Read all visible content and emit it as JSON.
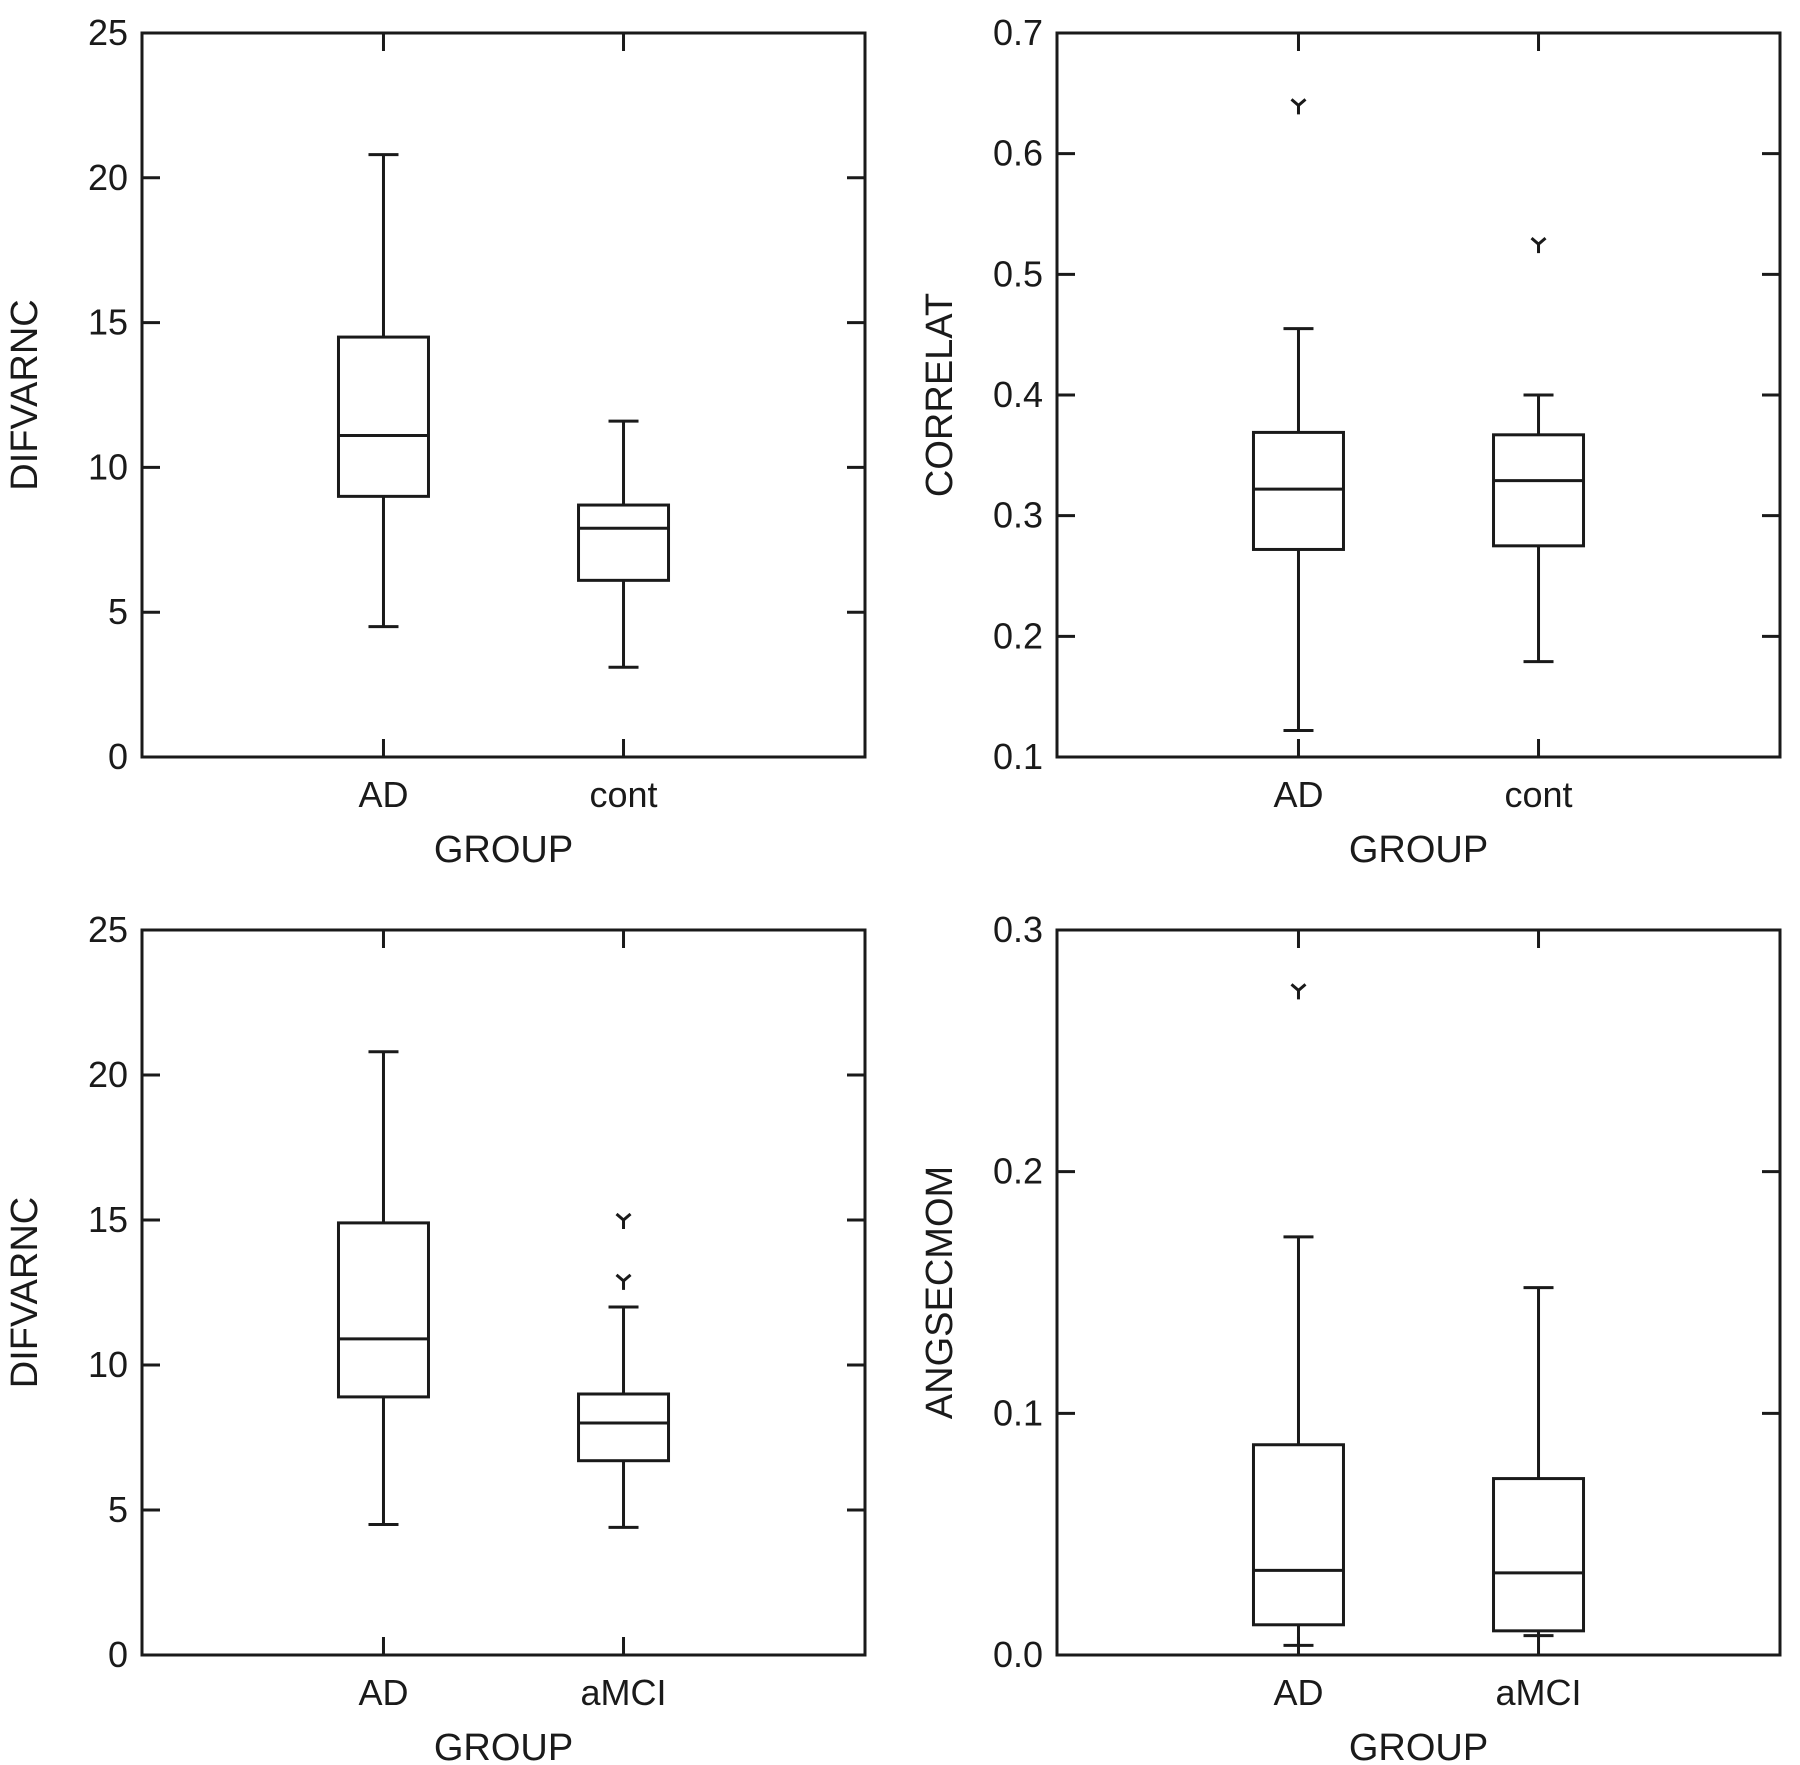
{
  "chart_data": [
    {
      "type": "box",
      "xlabel": "GROUP",
      "ylabel": "DIFVARNC",
      "ylim": [
        0,
        25
      ],
      "yticks": [
        "0",
        "5",
        "10",
        "15",
        "20",
        "25"
      ],
      "categories": [
        "AD",
        "cont"
      ],
      "boxes": [
        {
          "category": "AD",
          "min": 4.5,
          "q1": 9.0,
          "median": 11.1,
          "q3": 14.5,
          "max": 20.8,
          "outliers": []
        },
        {
          "category": "cont",
          "min": 3.1,
          "q1": 6.1,
          "median": 7.9,
          "q3": 8.7,
          "max": 11.6,
          "outliers": []
        }
      ]
    },
    {
      "type": "box",
      "xlabel": "GROUP",
      "ylabel": "CORRELAT",
      "ylim": [
        0.1,
        0.7
      ],
      "yticks": [
        "0.1",
        "0.2",
        "0.3",
        "0.4",
        "0.5",
        "0.6",
        "0.7"
      ],
      "categories": [
        "AD",
        "cont"
      ],
      "boxes": [
        {
          "category": "AD",
          "min": 0.122,
          "q1": 0.272,
          "median": 0.322,
          "q3": 0.369,
          "max": 0.455,
          "outliers": [
            0.64
          ]
        },
        {
          "category": "cont",
          "min": 0.179,
          "q1": 0.275,
          "median": 0.329,
          "q3": 0.367,
          "max": 0.4,
          "outliers": [
            0.525
          ]
        }
      ]
    },
    {
      "type": "box",
      "xlabel": "GROUP",
      "ylabel": "DIFVARNC",
      "ylim": [
        0,
        25
      ],
      "yticks": [
        "0",
        "5",
        "10",
        "15",
        "20",
        "25"
      ],
      "categories": [
        "AD",
        "aMCI"
      ],
      "boxes": [
        {
          "category": "AD",
          "min": 4.5,
          "q1": 8.9,
          "median": 10.9,
          "q3": 14.9,
          "max": 20.8,
          "outliers": []
        },
        {
          "category": "aMCI",
          "min": 4.4,
          "q1": 6.7,
          "median": 8.0,
          "q3": 9.0,
          "max": 12.0,
          "outliers": [
            12.9,
            15.0
          ]
        }
      ]
    },
    {
      "type": "box",
      "xlabel": "GROUP",
      "ylabel": "ANGSECMOM",
      "ylim": [
        0.0,
        0.3
      ],
      "yticks": [
        "0.0",
        "0.1",
        "0.2",
        "0.3"
      ],
      "categories": [
        "AD",
        "aMCI"
      ],
      "boxes": [
        {
          "category": "AD",
          "min": 0.004,
          "q1": 0.0125,
          "median": 0.035,
          "q3": 0.087,
          "max": 0.173,
          "outliers": [
            0.275
          ]
        },
        {
          "category": "aMCI",
          "min": 0.008,
          "q1": 0.01,
          "median": 0.034,
          "q3": 0.073,
          "max": 0.152,
          "outliers": []
        }
      ]
    }
  ]
}
